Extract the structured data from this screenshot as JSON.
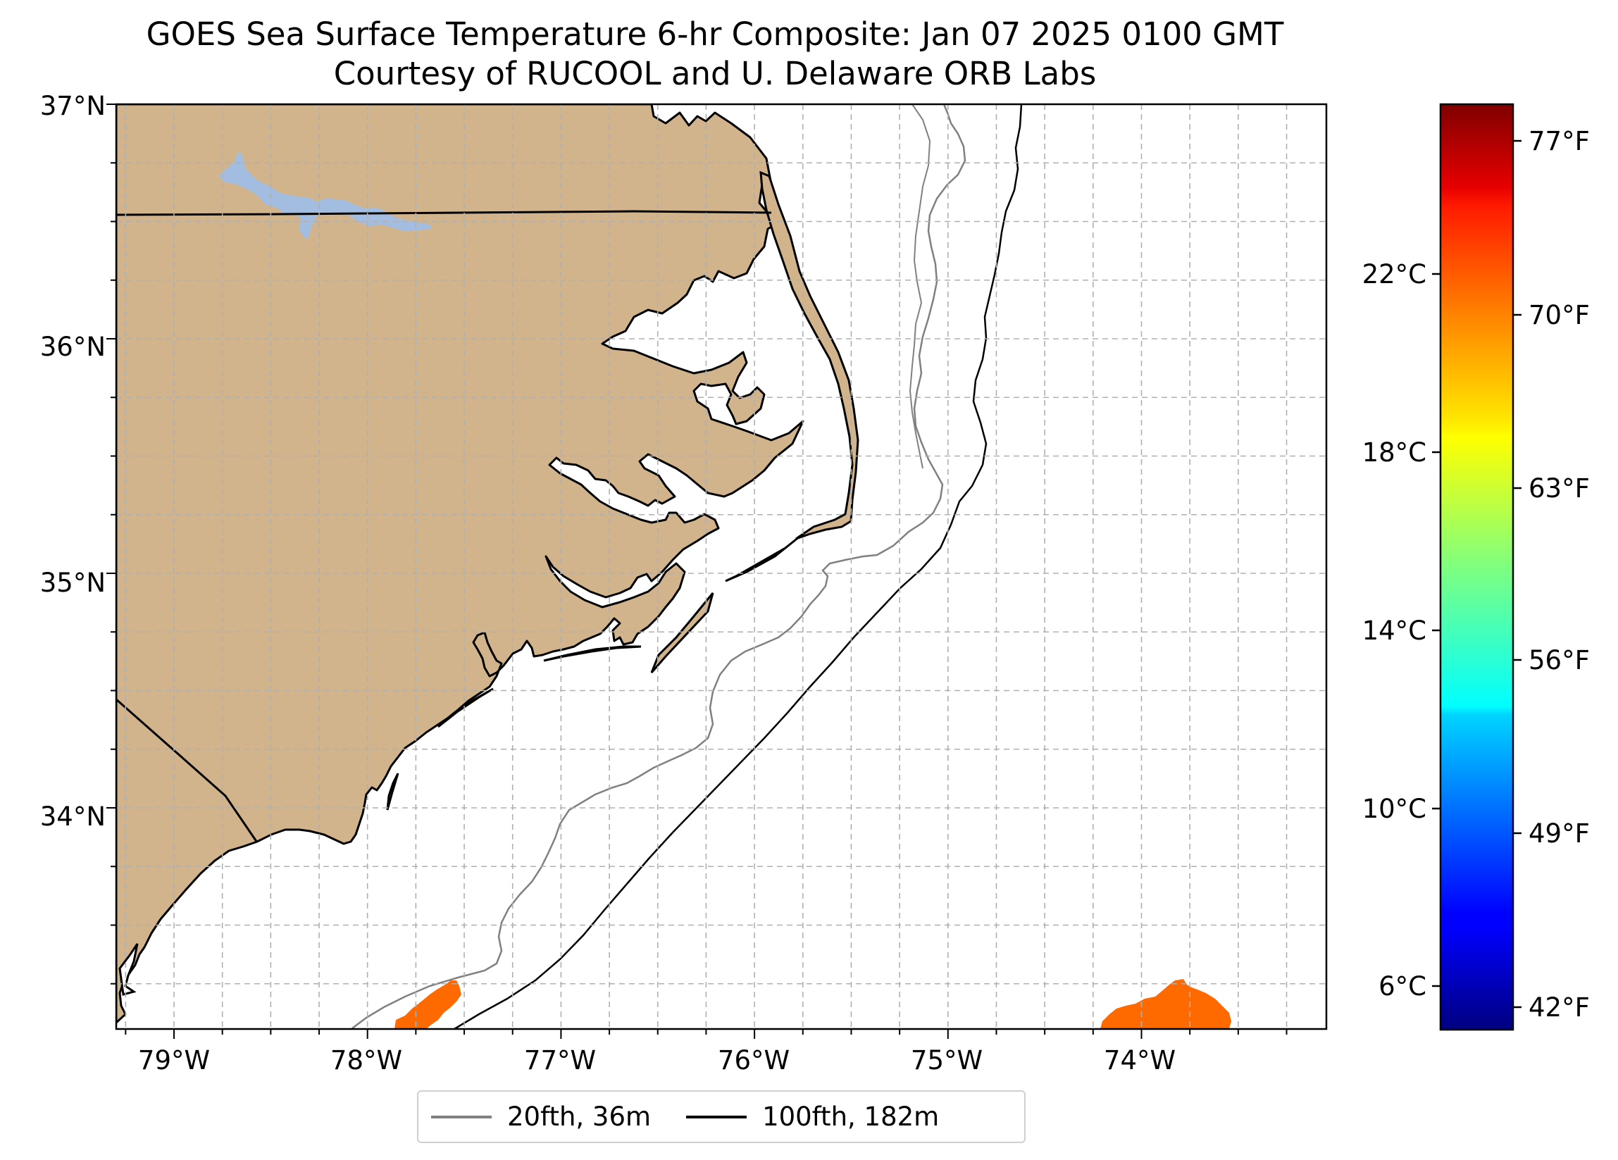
{
  "title": {
    "line1": "GOES Sea Surface Temperature 6-hr Composite: Jan 07 2025 0100 GMT",
    "line2": "Courtesy of RUCOOL and U. Delaware ORB Labs"
  },
  "map": {
    "lat_labels": [
      "37°N",
      "36°N",
      "35°N",
      "34°N"
    ],
    "lon_labels": [
      "79°W",
      "78°W",
      "77°W",
      "76°W",
      "75°W",
      "74°W"
    ],
    "land_color": "#d2b48c",
    "lake_color": "#a3bde0",
    "sst_patch_color": "#ff6a00",
    "sst_patch_value_f": 71
  },
  "colorbar": {
    "colormap": "jet",
    "celsius_labels": [
      "22°C",
      "18°C",
      "14°C",
      "10°C",
      "6°C"
    ],
    "fahrenheit_labels": [
      "77°F",
      "70°F",
      "63°F",
      "56°F",
      "49°F",
      "42°F"
    ]
  },
  "legend": {
    "items": [
      {
        "label": "20fth, 36m",
        "color": "#808080"
      },
      {
        "label": "100fth, 182m",
        "color": "#000000"
      }
    ]
  }
}
